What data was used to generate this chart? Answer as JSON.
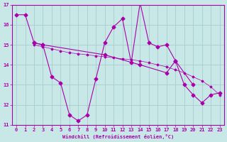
{
  "background_color": "#c8e8e8",
  "line_color": "#aa00aa",
  "grid_color": "#aacccc",
  "xlabel": "Windchill (Refroidissement éolien,°C)",
  "xlim": [
    -0.5,
    23.5
  ],
  "ylim": [
    11,
    17
  ],
  "yticks": [
    11,
    12,
    13,
    14,
    15,
    16,
    17
  ],
  "xticks": [
    0,
    1,
    2,
    3,
    4,
    5,
    6,
    7,
    8,
    9,
    10,
    11,
    12,
    13,
    14,
    15,
    16,
    17,
    18,
    19,
    20,
    21,
    22,
    23
  ],
  "line1_x": [
    0,
    1,
    2,
    3,
    4,
    5,
    6,
    7,
    8,
    9,
    10,
    11,
    12,
    13,
    14,
    15,
    16,
    17,
    18,
    19,
    20,
    21,
    22,
    23
  ],
  "line1_y": [
    16.5,
    16.5,
    15.1,
    15.0,
    13.4,
    13.1,
    11.5,
    11.2,
    11.5,
    13.3,
    15.1,
    15.9,
    16.3,
    14.1,
    17.1,
    15.1,
    14.9,
    15.0,
    14.2,
    13.0,
    12.5,
    12.1,
    12.5,
    12.6
  ],
  "line2_x": [
    2,
    3,
    10,
    14,
    17,
    18,
    20
  ],
  "line2_y": [
    15.1,
    15.0,
    14.5,
    14.0,
    13.6,
    14.2,
    13.0
  ],
  "line3_x": [
    2,
    3,
    4,
    5,
    6,
    7,
    8,
    9,
    10,
    11,
    12,
    13,
    14,
    15,
    16,
    17,
    18,
    19,
    20,
    21,
    22,
    23
  ],
  "line3_y": [
    15.0,
    14.9,
    14.8,
    14.7,
    14.6,
    14.55,
    14.5,
    14.45,
    14.4,
    14.35,
    14.3,
    14.25,
    14.2,
    14.1,
    14.0,
    13.9,
    13.75,
    13.6,
    13.4,
    13.2,
    12.9,
    12.5
  ]
}
